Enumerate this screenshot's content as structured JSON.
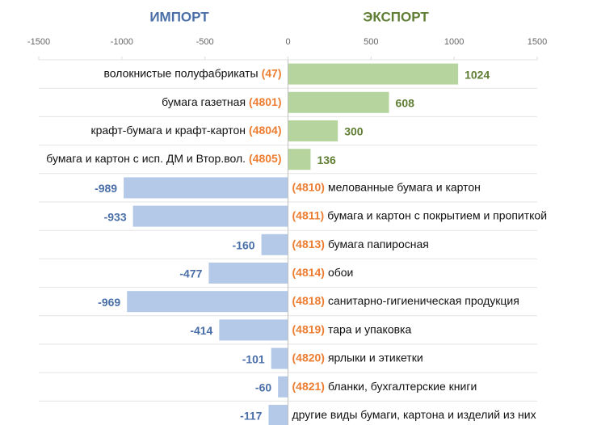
{
  "chart_data": {
    "type": "diverging_bar",
    "left_header": "ИМПОРТ",
    "right_header": "ЭКСПОРТ",
    "categories": [
      "волокнистые полуфабрикаты",
      "бумага газетная",
      "крафт-бумага и крафт-картон",
      "бумага и картон с исп. ДМ и Втор.вол.",
      "мелованные бумага и картон",
      "бумага и картон с покрытием и пропиткой",
      "бумага папиросная",
      "обои",
      "санитарно-гигиеническая продукция",
      "тара и упаковка",
      "ярлыки и этикетки",
      "бланки, бухгалтерские книги",
      "другие виды бумаги, картона и изделий из них"
    ],
    "codes": [
      "(47)",
      "(4801)",
      "(4804)",
      "(4805)",
      "(4810)",
      "(4811)",
      "(4813)",
      "(4814)",
      "(4818)",
      "(4819)",
      "(4820)",
      "(4821)",
      null
    ],
    "values": [
      1024,
      608,
      300,
      136,
      -989,
      -933,
      -160,
      -477,
      -969,
      -414,
      -101,
      -60,
      -117
    ],
    "xlim": [
      -1500,
      1500
    ],
    "xticks": [
      -1500,
      -1000,
      -500,
      0,
      500,
      1000,
      1500
    ],
    "positive_color": "#b6d59e",
    "negative_color": "#b4c8e8",
    "positive_label_color": "#5f7d33",
    "negative_label_color": "#4a6fa8",
    "code_color": "#ed7d31"
  }
}
